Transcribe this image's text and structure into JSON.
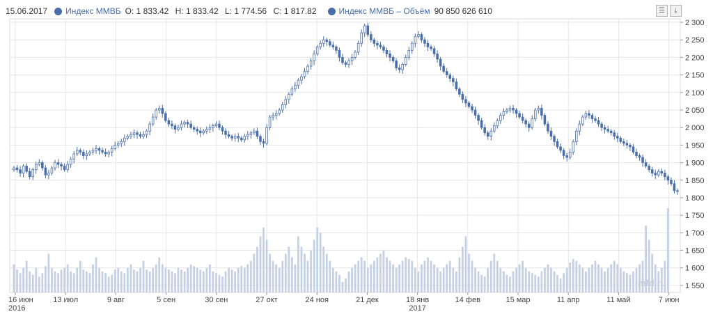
{
  "legend": {
    "date": "15.06.2017",
    "series_name": "Индекс ММВБ",
    "open": "O: 1 833.42",
    "high": "H: 1 833.42",
    "low": "L: 1 774.56",
    "close": "C: 1 817.82",
    "volume_name": "Индекс ММВБ – Объём",
    "volume_value": "90 850 626 610"
  },
  "toolbar": {
    "menu_icon": "menu-icon",
    "download_icon": "download-icon"
  },
  "watermark": "mfd.ru",
  "colors": {
    "price": "#4a6ea9",
    "volume": "#c4d0e4",
    "grid": "#e6e6e6"
  },
  "chart_data": {
    "type": "candlestick",
    "title": "",
    "y_axis": {
      "position": "right",
      "ylim": [
        1530,
        2310
      ],
      "ticks": [
        "2 300",
        "2 250",
        "2 200",
        "2 150",
        "2 100",
        "2 050",
        "2 000",
        "1 950",
        "1 900",
        "1 850",
        "1 800",
        "1 750",
        "1 700",
        "1 650",
        "1 600",
        "1 550"
      ]
    },
    "x_axis": {
      "ticks": [
        {
          "label": "16 июн",
          "sub": "2016"
        },
        {
          "label": "13 июл",
          "sub": ""
        },
        {
          "label": "9 авг",
          "sub": ""
        },
        {
          "label": "5 сен",
          "sub": ""
        },
        {
          "label": "30 сен",
          "sub": ""
        },
        {
          "label": "27 окт",
          "sub": ""
        },
        {
          "label": "24 ноя",
          "sub": ""
        },
        {
          "label": "21 дек",
          "sub": ""
        },
        {
          "label": "18 янв",
          "sub": "2017"
        },
        {
          "label": "14 фев",
          "sub": ""
        },
        {
          "label": "15 мар",
          "sub": ""
        },
        {
          "label": "11 апр",
          "sub": ""
        },
        {
          "label": "11 май",
          "sub": ""
        },
        {
          "label": "7 июн",
          "sub": ""
        }
      ]
    },
    "series": [
      {
        "name": "Индекс ММВБ",
        "kind": "close",
        "values": [
          1885,
          1880,
          1870,
          1890,
          1875,
          1860,
          1880,
          1895,
          1900,
          1885,
          1865,
          1870,
          1885,
          1900,
          1895,
          1890,
          1880,
          1895,
          1910,
          1925,
          1935,
          1930,
          1920,
          1925,
          1930,
          1935,
          1940,
          1935,
          1930,
          1925,
          1930,
          1940,
          1950,
          1955,
          1960,
          1970,
          1975,
          1980,
          1985,
          1980,
          1975,
          1980,
          1990,
          2010,
          2030,
          2050,
          2055,
          2040,
          2020,
          2010,
          2005,
          1995,
          2000,
          2010,
          2015,
          2010,
          2000,
          1995,
          1990,
          1985,
          1990,
          1995,
          2000,
          2005,
          2010,
          2000,
          1990,
          1980,
          1975,
          1970,
          1975,
          1970,
          1965,
          1975,
          1980,
          1985,
          1990,
          1975,
          1960,
          1955,
          2000,
          2030,
          2035,
          2040,
          2050,
          2065,
          2080,
          2095,
          2110,
          2120,
          2135,
          2145,
          2160,
          2175,
          2190,
          2210,
          2230,
          2240,
          2250,
          2245,
          2235,
          2230,
          2220,
          2200,
          2185,
          2180,
          2190,
          2200,
          2215,
          2240,
          2270,
          2290,
          2265,
          2250,
          2240,
          2235,
          2230,
          2220,
          2210,
          2200,
          2190,
          2170,
          2165,
          2180,
          2200,
          2220,
          2240,
          2260,
          2265,
          2250,
          2240,
          2230,
          2225,
          2210,
          2195,
          2175,
          2160,
          2150,
          2140,
          2130,
          2110,
          2095,
          2080,
          2070,
          2060,
          2050,
          2035,
          2020,
          2000,
          1985,
          1975,
          1990,
          2005,
          2020,
          2035,
          2045,
          2050,
          2055,
          2050,
          2040,
          2030,
          2020,
          2010,
          2000,
          2025,
          2050,
          2055,
          2035,
          2010,
          1990,
          1975,
          1960,
          1945,
          1935,
          1920,
          1915,
          1930,
          1960,
          1990,
          2010,
          2030,
          2040,
          2035,
          2025,
          2020,
          2010,
          2000,
          1995,
          1990,
          1985,
          1975,
          1970,
          1960,
          1955,
          1950,
          1945,
          1930,
          1920,
          1915,
          1900,
          1890,
          1880,
          1870,
          1865,
          1875,
          1870,
          1860,
          1850,
          1840,
          1820,
          1818
        ]
      },
      {
        "name": "Индекс ММВБ – Объём",
        "kind": "volume",
        "values": [
          1610,
          1595,
          1585,
          1600,
          1620,
          1590,
          1580,
          1600,
          1575,
          1585,
          1605,
          1640,
          1600,
          1590,
          1585,
          1595,
          1600,
          1610,
          1590,
          1585,
          1600,
          1620,
          1595,
          1590,
          1585,
          1610,
          1630,
          1600,
          1590,
          1585,
          1575,
          1580,
          1595,
          1600,
          1590,
          1585,
          1600,
          1610,
          1595,
          1590,
          1600,
          1620,
          1595,
          1590,
          1600,
          1610,
          1630,
          1610,
          1600,
          1595,
          1590,
          1585,
          1600,
          1595,
          1590,
          1600,
          1610,
          1605,
          1600,
          1595,
          1590,
          1600,
          1610,
          1590,
          1585,
          1580,
          1575,
          1590,
          1600,
          1595,
          1590,
          1600,
          1605,
          1600,
          1610,
          1620,
          1640,
          1660,
          1690,
          1715,
          1680,
          1640,
          1620,
          1610,
          1600,
          1620,
          1640,
          1660,
          1630,
          1610,
          1690,
          1660,
          1640,
          1620,
          1650,
          1680,
          1715,
          1700,
          1660,
          1640,
          1620,
          1600,
          1590,
          1580,
          1560,
          1570,
          1590,
          1600,
          1610,
          1620,
          1630,
          1620,
          1600,
          1610,
          1620,
          1630,
          1640,
          1650,
          1630,
          1620,
          1610,
          1600,
          1610,
          1620,
          1630,
          1625,
          1620,
          1600,
          1590,
          1610,
          1620,
          1630,
          1620,
          1610,
          1600,
          1590,
          1600,
          1610,
          1620,
          1600,
          1590,
          1630,
          1660,
          1690,
          1640,
          1620,
          1600,
          1590,
          1580,
          1575,
          1600,
          1620,
          1640,
          1620,
          1600,
          1590,
          1580,
          1575,
          1590,
          1600,
          1610,
          1620,
          1600,
          1590,
          1585,
          1580,
          1575,
          1590,
          1600,
          1610,
          1600,
          1590,
          1580,
          1570,
          1585,
          1600,
          1615,
          1625,
          1620,
          1610,
          1600,
          1590,
          1600,
          1610,
          1620,
          1610,
          1600,
          1590,
          1600,
          1610,
          1620,
          1610,
          1600,
          1590,
          1585,
          1580,
          1590,
          1600,
          1610,
          1620,
          1720,
          1680,
          1640,
          1610,
          1590,
          1600,
          1620,
          1770
        ]
      }
    ]
  }
}
